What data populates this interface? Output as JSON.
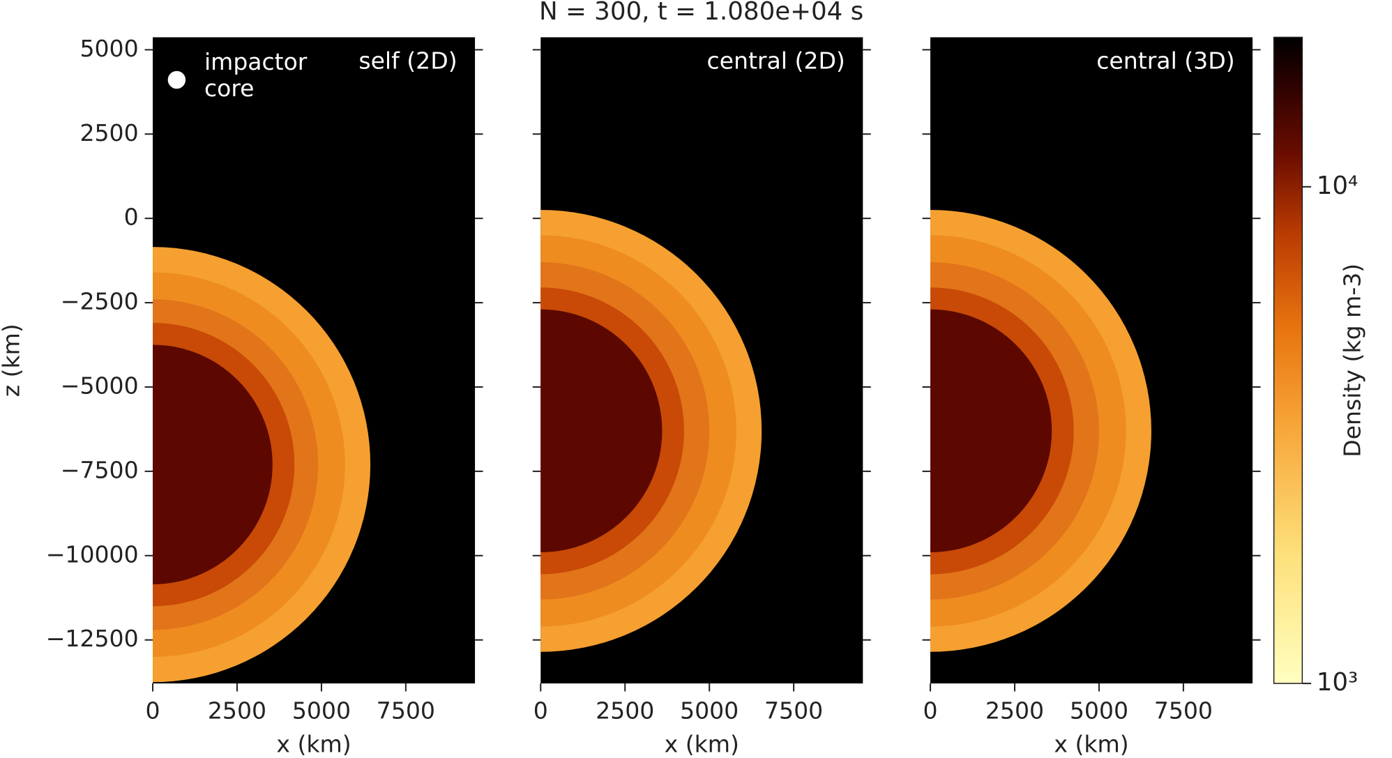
{
  "chart_data": {
    "type": "image",
    "title": "N = 300, t = 1.080e+04 s",
    "xlabel": "x (km)",
    "ylabel": "z (km)",
    "xlim": [
      0,
      9550
    ],
    "ylim": [
      -13790,
      5370
    ],
    "xticks": [
      0,
      2500,
      5000,
      7500
    ],
    "yticks": [
      5000,
      2500,
      0,
      {
        "value": -2500,
        "label": "−2500"
      },
      {
        "value": -5000,
        "label": "−5000"
      },
      {
        "value": -7500,
        "label": "−7500"
      },
      {
        "value": -10000,
        "label": "−10000"
      },
      {
        "value": -12500,
        "label": "−12500"
      }
    ],
    "panels": [
      {
        "label": "self (2D)"
      },
      {
        "label": "central (2D)"
      },
      {
        "label": "central (3D)"
      }
    ],
    "legend": {
      "label": "impactor core",
      "color": "#ffffff"
    },
    "colorbar": {
      "label": "Density (kg m-3)",
      "log": true,
      "lim": [
        1000,
        20000
      ],
      "ticks": [
        {
          "value": 10000,
          "label": "10⁴"
        },
        {
          "value": 1000,
          "label": "10³"
        }
      ]
    }
  }
}
